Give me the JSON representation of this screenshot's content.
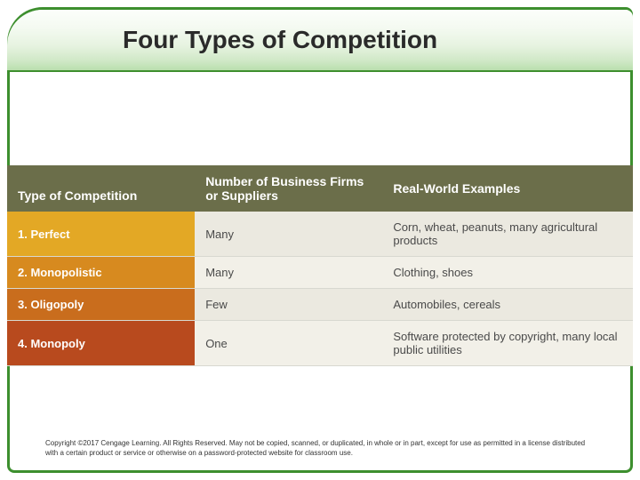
{
  "title": "Four Types of Competition",
  "table": {
    "header": {
      "col1": "Type of Competition",
      "col2": "Number of Business Firms or Suppliers",
      "col3": "Real-World Examples",
      "bg": "#6b6e4a"
    },
    "rows": [
      {
        "col1": "1. Perfect",
        "col2": "Many",
        "col3": "Corn, wheat, peanuts, many agricultural products",
        "label_bg": "#e3a825"
      },
      {
        "col1": "2. Monopolistic",
        "col2": "Many",
        "col3": "Clothing, shoes",
        "label_bg": "#d78a1f"
      },
      {
        "col1": "3. Oligopoly",
        "col2": "Few",
        "col3": "Automobiles, cereals",
        "label_bg": "#c96d1d"
      },
      {
        "col1": "4. Monopoly",
        "col2": "One",
        "col3": "Software protected by copyright, many local public utilities",
        "label_bg": "#b84a1e"
      }
    ]
  },
  "copyright": "Copyright ©2017 Cengage Learning. All Rights Reserved. May not be copied, scanned, or duplicated, in whole or in part, except for use as permitted in a license distributed with a certain product or service or otherwise on a password-protected website for classroom use.",
  "colors": {
    "frame_border": "#3d8f2e",
    "header_bg": "#6b6e4a",
    "body_bg_light": "#f2f0e8",
    "body_bg_dark": "#ebe9e0"
  }
}
